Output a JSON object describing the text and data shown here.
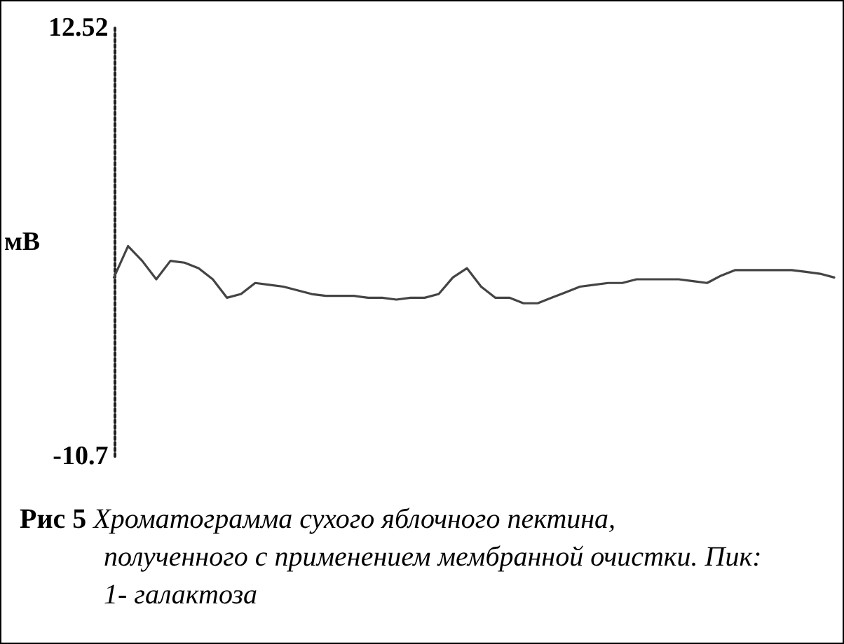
{
  "chart_data": {
    "type": "line",
    "ylabel": "мВ",
    "categories": [
      null,
      null,
      null,
      null,
      null,
      null,
      null,
      null,
      null,
      null,
      null,
      null,
      null,
      null,
      null,
      null,
      null,
      null,
      null,
      null,
      null,
      null,
      null,
      null,
      null,
      null,
      null,
      null,
      null,
      null,
      null,
      null,
      null,
      null,
      null,
      null,
      null,
      null,
      null,
      null,
      null,
      null,
      null,
      null,
      null,
      null,
      null,
      null,
      null,
      null,
      null,
      null
    ],
    "series": [
      {
        "color": "#444444",
        "values": [
          -1.0,
          0.7,
          -0.1,
          -1.1,
          -0.1,
          -0.2,
          -0.5,
          -1.1,
          -2.1,
          -1.9,
          -1.3,
          -1.4,
          -1.5,
          -1.7,
          -1.9,
          -2.0,
          -2.0,
          -2.0,
          -2.1,
          -2.1,
          -2.2,
          -2.1,
          -2.1,
          -1.9,
          -1.0,
          -0.5,
          -1.5,
          -2.1,
          -2.1,
          -2.4,
          -2.4,
          -2.1,
          -1.8,
          -1.5,
          -1.4,
          -1.3,
          -1.3,
          -1.1,
          -1.1,
          -1.1,
          -1.1,
          -1.2,
          -1.3,
          -0.9,
          -0.6,
          -0.6,
          -0.6,
          -0.6,
          -0.6,
          -0.7,
          -0.8,
          -1.0
        ]
      }
    ],
    "ylim": [
      -10.7,
      12.52
    ],
    "yticks": [
      -10.7,
      12.52
    ],
    "grid": false,
    "marker": "none",
    "line_style": "solid",
    "tick_labels": "y",
    "annotations": [
      "Рис 5",
      "Хроматограмма сухого яблочного пектина, полученного с применением мембранной очистки. Пик: 1- галактоза"
    ]
  }
}
